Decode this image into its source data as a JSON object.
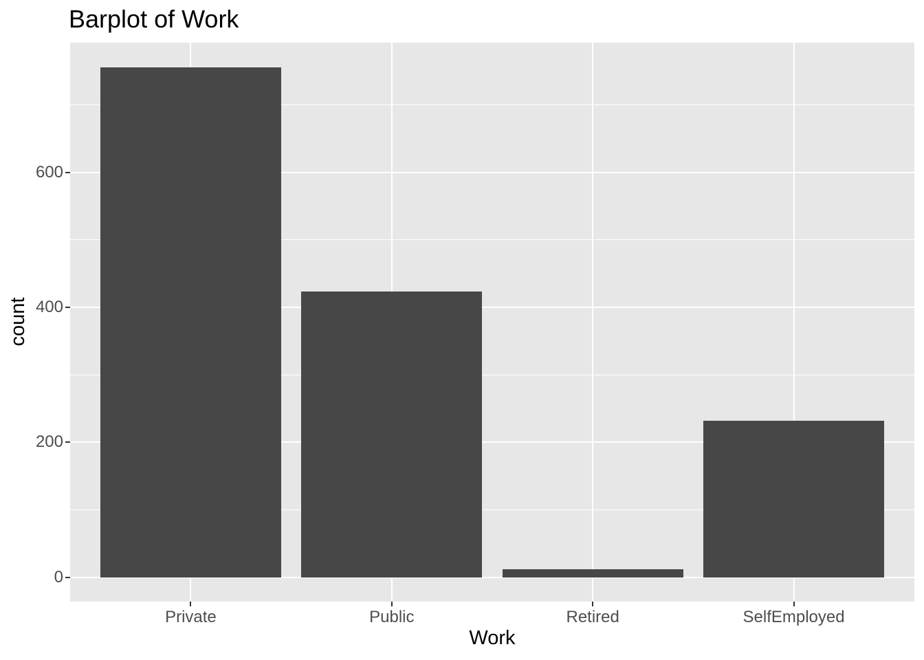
{
  "chart_data": {
    "type": "bar",
    "title": "Barplot of Work",
    "xlabel": "Work",
    "ylabel": "count",
    "categories": [
      "Private",
      "Public",
      "Retired",
      "SelfEmployed"
    ],
    "values": [
      755,
      423,
      12,
      232
    ],
    "y_ticks": [
      0,
      200,
      400,
      600
    ],
    "y_minor_ticks": [
      100,
      300,
      500,
      700
    ],
    "ylim": [
      -36,
      792
    ],
    "bar_width_fraction": 0.9,
    "grid": "on",
    "legend": "none"
  },
  "style": {
    "bar_color": "#474747",
    "panel_bg": "#E7E7E7",
    "grid_color": "#FFFFFF",
    "tick_label_color": "#4D4D4D",
    "tick_mark_color": "#333333",
    "text_color": "#000000",
    "page_bg": "#FFFFFF"
  }
}
